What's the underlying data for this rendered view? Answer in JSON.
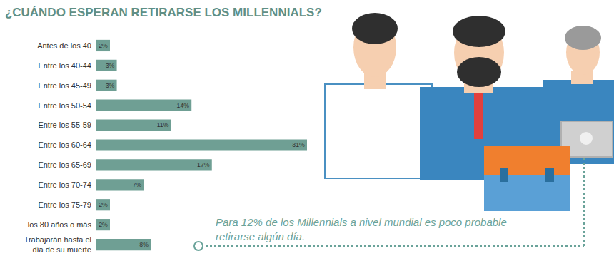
{
  "chart_data": {
    "type": "bar",
    "orientation": "horizontal",
    "title": "¿CUÁNDO ESPERAN RETIRARSE LOS MILLENNIALS?",
    "categories": [
      "Antes de los 40",
      "Entre los 40-44",
      "Entre los 45-49",
      "Entre los 50-54",
      "Entre los 55-59",
      "Entre los 60-64",
      "Entre los 65-69",
      "Entre los 70-74",
      "Entre los 75-79",
      "los 80 años o más",
      "Trabajarán hasta el día de su muerte"
    ],
    "values": [
      2,
      3,
      3,
      14,
      11,
      31,
      17,
      7,
      2,
      2,
      8
    ],
    "value_labels": [
      "2%",
      "3%",
      "3%",
      "14%",
      "11%",
      "31%",
      "17%",
      "7%",
      "2%",
      "2%",
      "8%"
    ],
    "data_labels": true,
    "color": "#6f9f94",
    "xlim": [
      0,
      31
    ],
    "tick_labels": "y",
    "grid": false,
    "annotations": [
      "Para 12% de los Millennials a nivel mundial es poco probable retirarse algún día."
    ]
  }
}
